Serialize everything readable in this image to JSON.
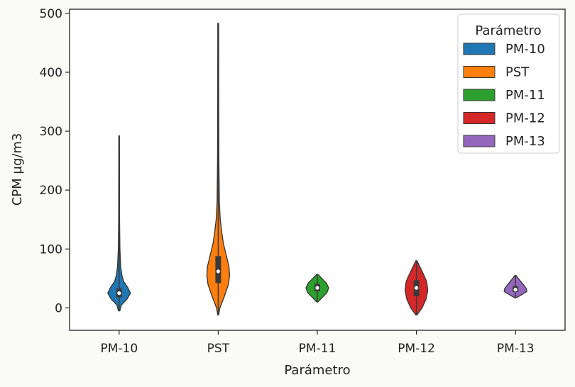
{
  "chart_data": {
    "type": "violin",
    "xlabel": "Parámetro",
    "ylabel": "CPM µg/m3",
    "ylim": [
      -38,
      507
    ],
    "yticks": [
      0,
      100,
      200,
      300,
      400,
      500
    ],
    "grid": false,
    "legend": {
      "title": "Parámetro",
      "placement": "top-right"
    },
    "categories": [
      "PM-10",
      "PST",
      "PM-11",
      "PM-12",
      "PM-13"
    ],
    "series": [
      {
        "name": "PM-10",
        "color": "#1f77b4",
        "min": -5,
        "max": 292,
        "q1": 18,
        "median": 25,
        "q3": 33,
        "density": [
          [
            -5,
            0.06
          ],
          [
            5,
            0.2
          ],
          [
            15,
            0.7
          ],
          [
            25,
            1.0
          ],
          [
            35,
            0.75
          ],
          [
            45,
            0.4
          ],
          [
            55,
            0.25
          ],
          [
            70,
            0.14
          ],
          [
            100,
            0.07
          ],
          [
            150,
            0.04
          ],
          [
            200,
            0.035
          ],
          [
            292,
            0.03
          ]
        ]
      },
      {
        "name": "PST",
        "color": "#ff7f0e",
        "min": -12,
        "max": 483,
        "q1": 42,
        "median": 62,
        "q3": 88,
        "density": [
          [
            -12,
            0.04
          ],
          [
            0,
            0.15
          ],
          [
            20,
            0.55
          ],
          [
            40,
            0.9
          ],
          [
            55,
            1.0
          ],
          [
            70,
            0.95
          ],
          [
            90,
            0.7
          ],
          [
            110,
            0.45
          ],
          [
            130,
            0.3
          ],
          [
            150,
            0.18
          ],
          [
            180,
            0.1
          ],
          [
            250,
            0.06
          ],
          [
            350,
            0.045
          ],
          [
            483,
            0.04
          ]
        ]
      },
      {
        "name": "PM-11",
        "color": "#2ca02c",
        "min": 10,
        "max": 57,
        "q1": 28,
        "median": 34,
        "q3": 41,
        "density": [
          [
            10,
            0.05
          ],
          [
            18,
            0.45
          ],
          [
            26,
            0.85
          ],
          [
            34,
            1.0
          ],
          [
            42,
            0.8
          ],
          [
            50,
            0.4
          ],
          [
            57,
            0.05
          ]
        ]
      },
      {
        "name": "PM-12",
        "color": "#d62728",
        "min": -12,
        "max": 80,
        "q1": 20,
        "median": 34,
        "q3": 47,
        "density": [
          [
            -12,
            0.05
          ],
          [
            0,
            0.5
          ],
          [
            15,
            0.85
          ],
          [
            30,
            1.0
          ],
          [
            45,
            0.9
          ],
          [
            60,
            0.55
          ],
          [
            72,
            0.25
          ],
          [
            80,
            0.05
          ]
        ]
      },
      {
        "name": "PM-13",
        "color": "#9467bd",
        "min": 17,
        "max": 55,
        "q1": 27,
        "median": 31,
        "q3": 37,
        "density": [
          [
            17,
            0.05
          ],
          [
            22,
            0.5
          ],
          [
            28,
            1.0
          ],
          [
            33,
            0.95
          ],
          [
            38,
            0.75
          ],
          [
            44,
            0.5
          ],
          [
            50,
            0.25
          ],
          [
            55,
            0.05
          ]
        ]
      }
    ]
  }
}
